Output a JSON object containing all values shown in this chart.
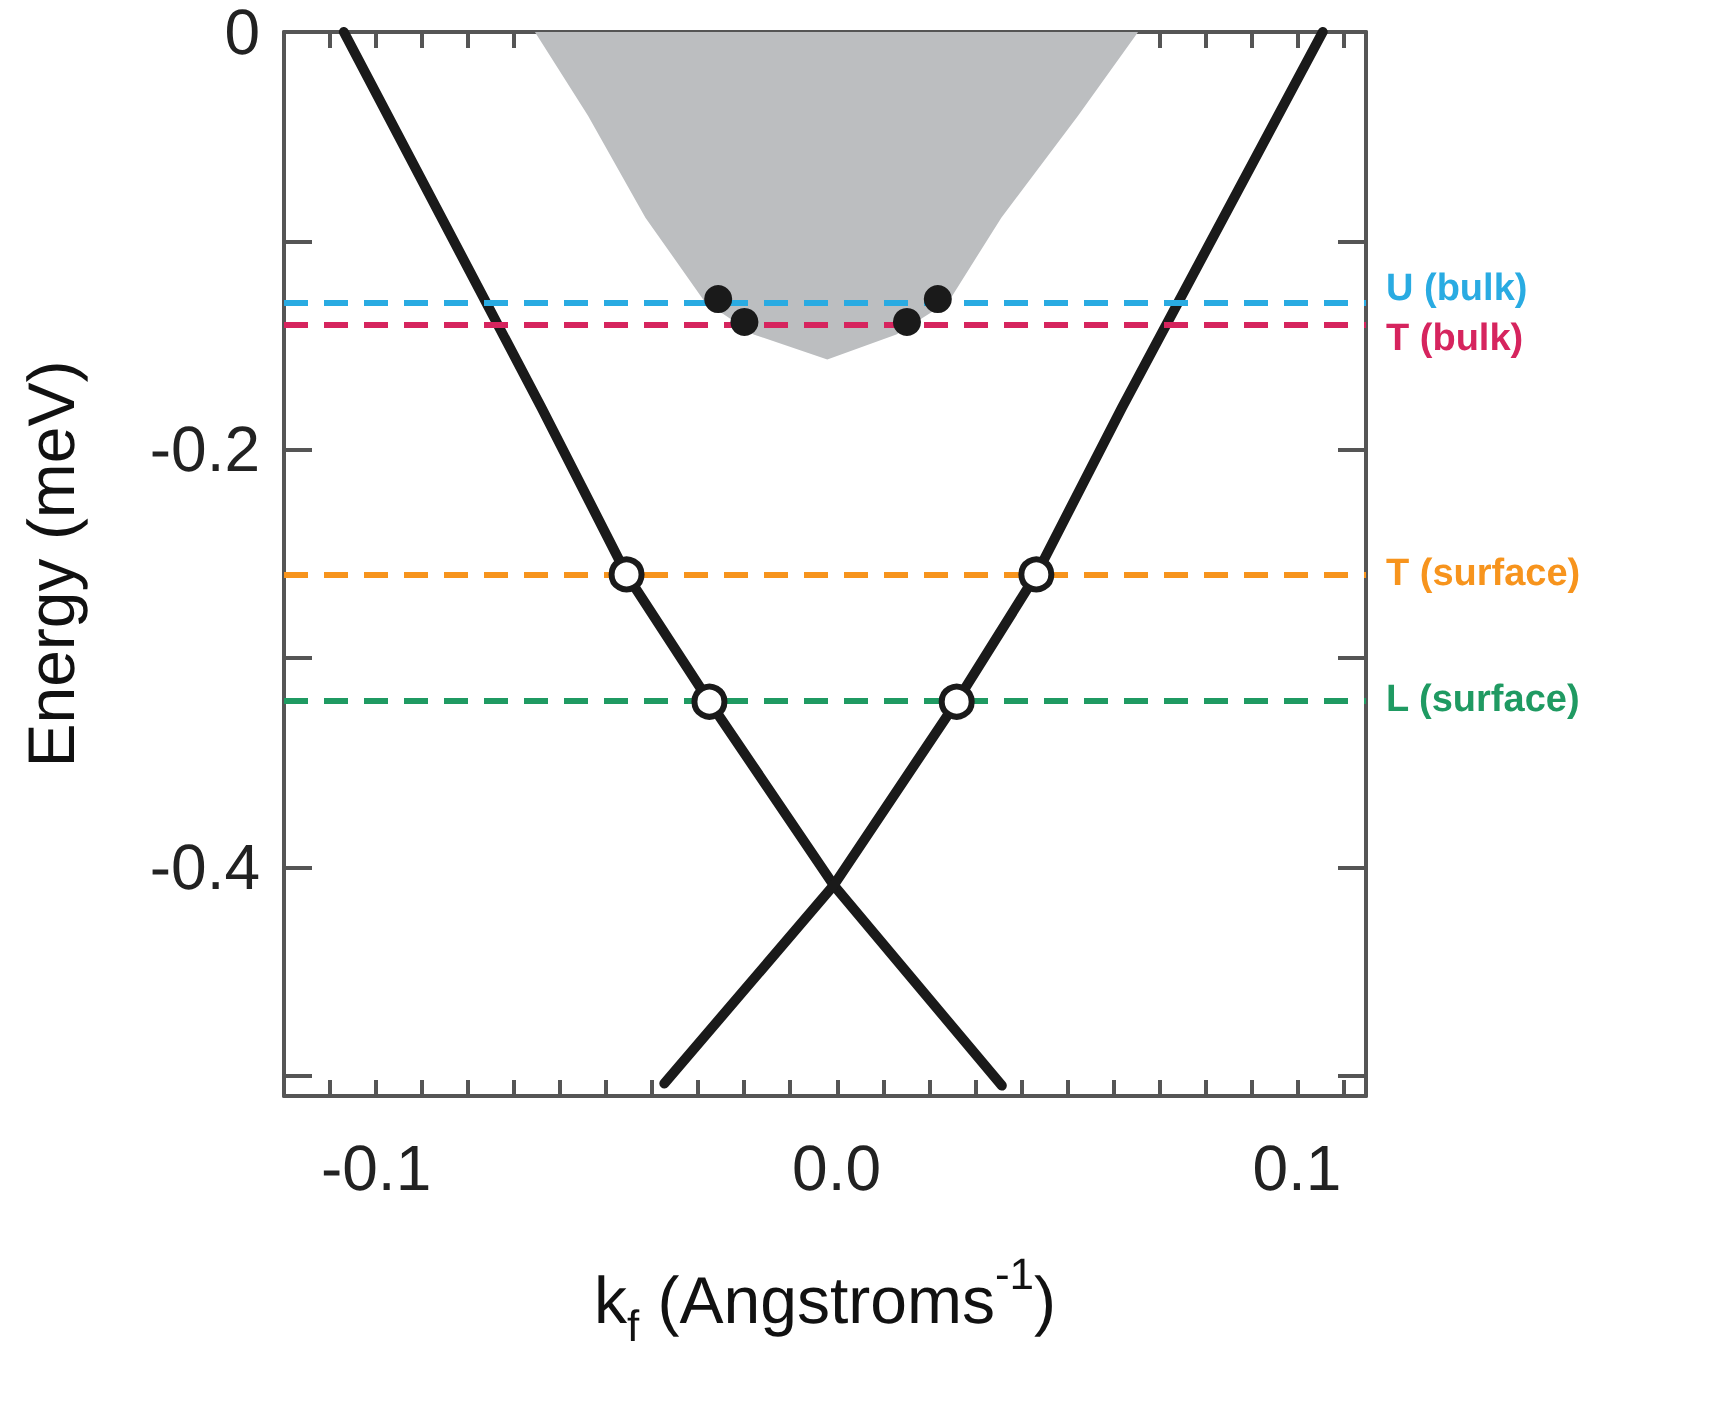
{
  "chart_data": {
    "type": "line",
    "xlabel": "k$_{f}$ (Angstroms$^{-1}$)",
    "ylabel": "Energy (meV)",
    "xlim": [
      -0.12,
      0.115
    ],
    "ylim": [
      -0.51,
      0
    ],
    "xticks": [
      {
        "value": -0.12,
        "label": null
      },
      {
        "value": -0.11,
        "label": null
      },
      {
        "value": -0.1,
        "label": "-0.1"
      },
      {
        "value": -0.09,
        "label": null
      },
      {
        "value": -0.08,
        "label": null
      },
      {
        "value": -0.07,
        "label": null
      },
      {
        "value": -0.06,
        "label": null
      },
      {
        "value": -0.05,
        "label": null
      },
      {
        "value": -0.04,
        "label": null
      },
      {
        "value": -0.03,
        "label": null
      },
      {
        "value": -0.02,
        "label": null
      },
      {
        "value": -0.01,
        "label": null
      },
      {
        "value": 0,
        "label": "0.0"
      },
      {
        "value": 0.01,
        "label": null
      },
      {
        "value": 0.02,
        "label": null
      },
      {
        "value": 0.03,
        "label": null
      },
      {
        "value": 0.04,
        "label": null
      },
      {
        "value": 0.05,
        "label": null
      },
      {
        "value": 0.06,
        "label": null
      },
      {
        "value": 0.07,
        "label": null
      },
      {
        "value": 0.08,
        "label": null
      },
      {
        "value": 0.09,
        "label": null
      },
      {
        "value": 0.1,
        "label": "0.1"
      },
      {
        "value": 0.11,
        "label": null
      }
    ],
    "yticks": [
      0,
      {
        "value": -0.1,
        "label": null
      },
      -0.2,
      {
        "value": -0.3,
        "label": null
      },
      -0.4,
      {
        "value": -0.5,
        "label": null
      }
    ],
    "grid": false,
    "series": [
      {
        "type": "area",
        "color": "#bcbec0",
        "x": [
          -0.0655,
          -0.054,
          -0.0415,
          -0.0287,
          -0.018,
          -0.002,
          0.013,
          0.0244,
          0.0358,
          0.0525,
          0.0655
        ],
        "values": [
          0,
          -0.04,
          -0.089,
          -0.129,
          -0.145,
          -0.157,
          -0.145,
          -0.129,
          -0.089,
          -0.04,
          0
        ]
      },
      {
        "color": "#1a1a1a",
        "marker": "none",
        "line_style": "solid",
        "x": [
          -0.107,
          -0.0641,
          -0.0456,
          -0.0276,
          -0.0006,
          0.0359
        ],
        "values": [
          0,
          -0.18,
          -0.26,
          -0.321,
          -0.409,
          -0.505
        ]
      },
      {
        "color": "#1a1a1a",
        "marker": "none",
        "line_style": "solid",
        "x": [
          0.1056,
          0.062,
          0.0434,
          0.0261,
          -0.0006,
          -0.0374
        ],
        "values": [
          0,
          -0.18,
          -0.26,
          -0.321,
          -0.409,
          -0.504
        ]
      },
      {
        "type": "scatter",
        "color": "#1a1a1a",
        "marker": "circle",
        "x": [
          -0.0257,
          0.022,
          -0.02,
          0.0153
        ],
        "values": [
          -0.128,
          -0.128,
          -0.139,
          -0.139
        ]
      },
      {
        "type": "scatter",
        "color": "#ffffff",
        "marker": "circle",
        "x": [
          -0.0456,
          0.0434,
          -0.0276,
          0.0261
        ],
        "values": [
          -0.26,
          -0.26,
          -0.321,
          -0.321
        ]
      }
    ],
    "ref_lines": [
      {
        "axis": "y",
        "value": -0.128,
        "label": "U (bulk)",
        "color": "#29abe2",
        "line_style": "dashed"
      },
      {
        "axis": "y",
        "value": -0.139,
        "label": "T (bulk)",
        "color": "#d6245e",
        "line_style": "dashed"
      },
      {
        "axis": "y",
        "value": -0.26,
        "label": "T (surface)",
        "color": "#f7941d",
        "line_style": "dashed"
      },
      {
        "axis": "y",
        "value": -0.321,
        "label": "L (surface)",
        "color": "#1f9a62",
        "line_style": "dashed"
      }
    ]
  }
}
